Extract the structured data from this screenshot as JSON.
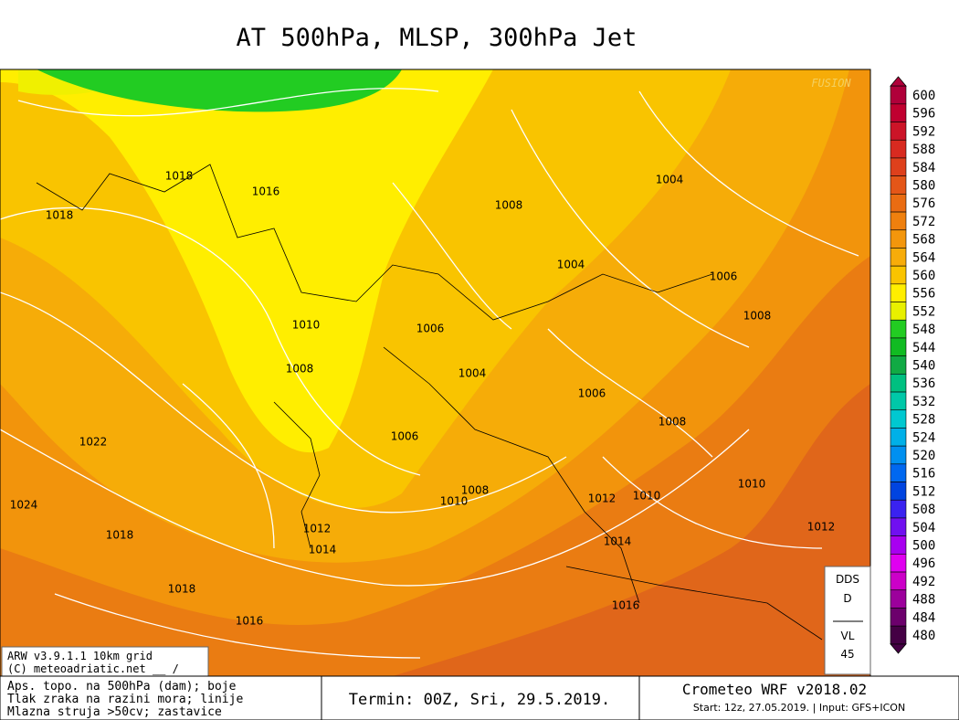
{
  "title": "AT 500hPa, MLSP, 300hPa Jet",
  "watermark": "FUSION",
  "legend": {
    "levels": [
      600,
      596,
      592,
      588,
      584,
      580,
      576,
      572,
      568,
      564,
      560,
      556,
      552,
      548,
      544,
      540,
      536,
      532,
      528,
      524,
      520,
      516,
      512,
      508,
      504,
      500,
      496,
      492,
      488,
      484,
      480
    ],
    "colors": [
      "#b0003a",
      "#c00030",
      "#cc1428",
      "#d82a20",
      "#de401c",
      "#e45618",
      "#ea6c12",
      "#ef800e",
      "#f3960c",
      "#f7ac0a",
      "#fac400",
      "#ffee00",
      "#e8f000",
      "#22cc22",
      "#11bb22",
      "#11aa44",
      "#00c080",
      "#00c8a8",
      "#00c8d0",
      "#00b0e8",
      "#0090f0",
      "#0068f0",
      "#0044e0",
      "#3a22f0",
      "#7010f0",
      "#a800f0",
      "#e000f0",
      "#cc00c8",
      "#9c009c",
      "#6c006c",
      "#440044"
    ]
  },
  "isobar_labels": [
    1018,
    1016,
    1018,
    1008,
    1004,
    1004,
    1006,
    1008,
    1010,
    1006,
    1008,
    1004,
    1006,
    1008,
    1006,
    1022,
    1024,
    1008,
    1010,
    1012,
    1010,
    1010,
    1012,
    1014,
    1018,
    1012,
    1014,
    1018,
    1016,
    1016
  ],
  "model_box": [
    "ARW v3.9.1.1 10km grid",
    "(C) meteoadriatic.net __ /"
  ],
  "info_box": [
    "DDS",
    "D",
    "VL",
    "45"
  ],
  "footer": {
    "description": [
      "Aps. topo. na 500hPa (dam); boje",
      "Tlak zraka na razini mora; linije",
      "Mlazna struja >50cv; zastavice"
    ],
    "termin": "Termin: 00Z, Sri, 29.5.2019.",
    "model": "Crometeo WRF v2018.02",
    "start": "Start: 12z, 27.05.2019. | Input: GFS+ICON"
  }
}
